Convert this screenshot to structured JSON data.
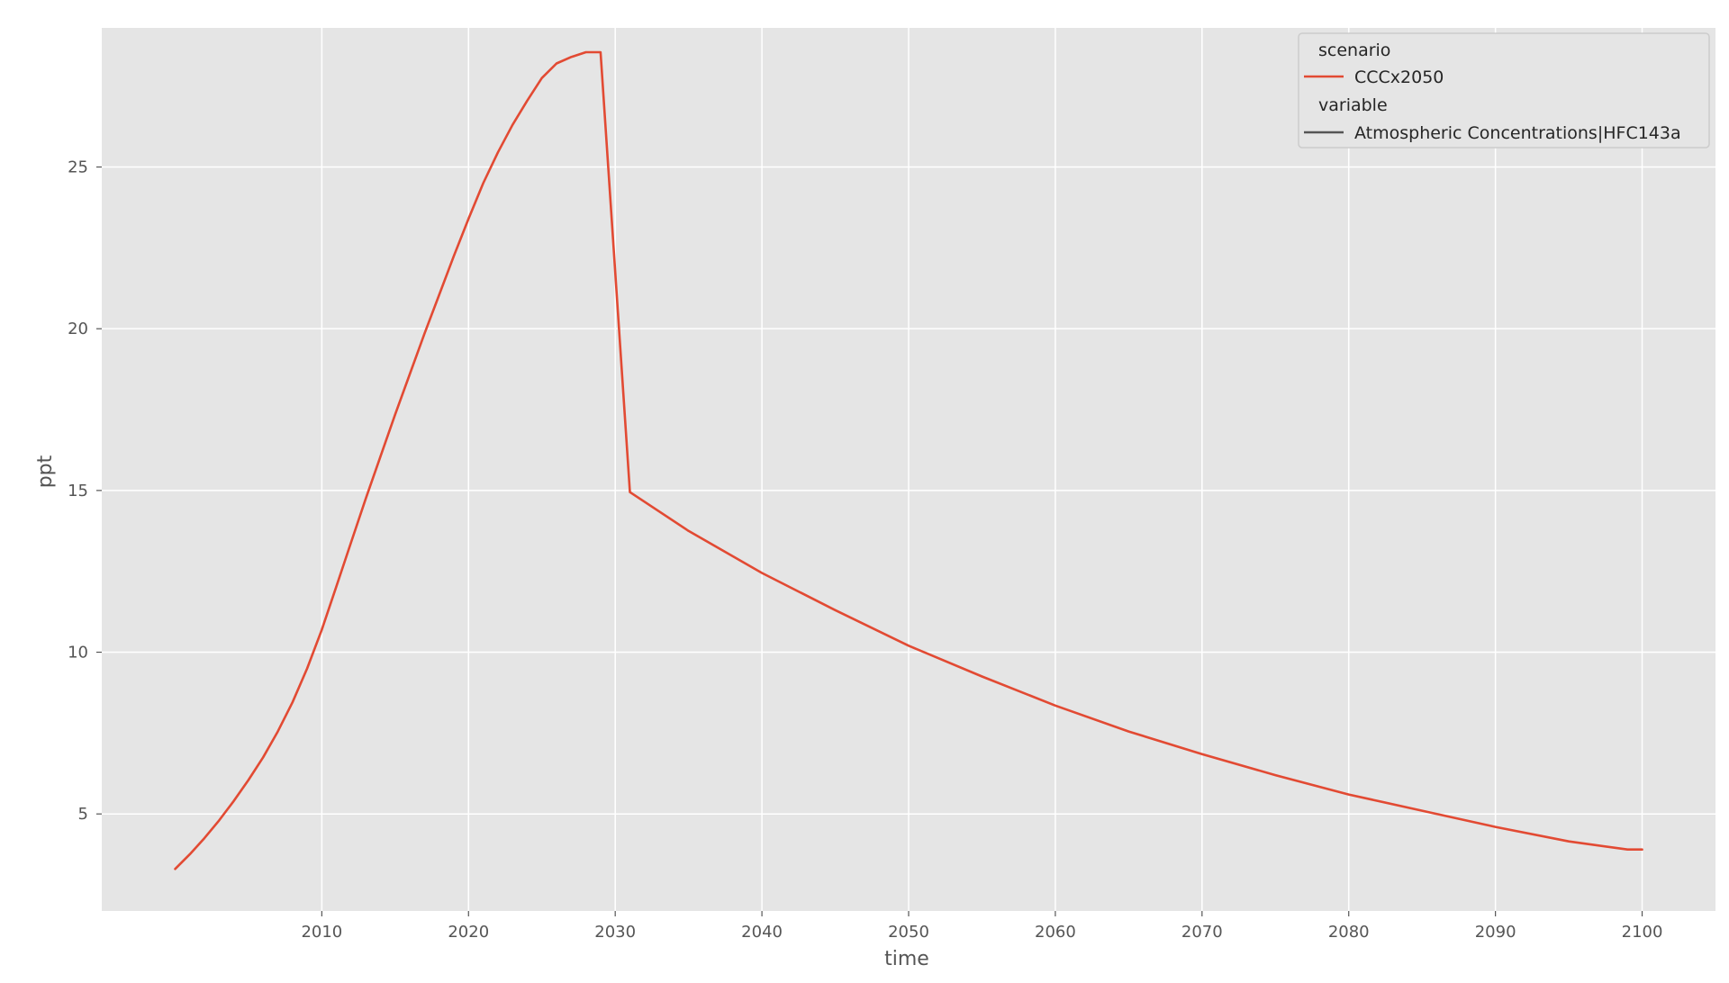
{
  "chart_data": {
    "type": "line",
    "title": "",
    "xlabel": "time",
    "ylabel": "ppt",
    "xlim": [
      1995,
      2105
    ],
    "ylim": [
      2.0,
      29.3
    ],
    "x_ticks": [
      2010,
      2020,
      2030,
      2040,
      2050,
      2060,
      2070,
      2080,
      2090,
      2100
    ],
    "y_ticks": [
      5,
      10,
      15,
      20,
      25
    ],
    "grid": true,
    "legend_position": "top-right",
    "legend": {
      "scenario_title": "scenario",
      "scenario_entry": "CCCx2050",
      "variable_title": "variable",
      "variable_entry": "Atmospheric Concentrations|HFC143a"
    },
    "colors": {
      "series": "#E24A33",
      "plot_background": "#E5E5E5",
      "grid": "#FFFFFF",
      "legend_variable_line": "#555555"
    },
    "series": [
      {
        "name": "CCCx2050",
        "x": [
          2000,
          2001,
          2002,
          2003,
          2004,
          2005,
          2006,
          2007,
          2008,
          2009,
          2010,
          2011,
          2012,
          2013,
          2014,
          2015,
          2016,
          2017,
          2018,
          2019,
          2020,
          2021,
          2022,
          2023,
          2024,
          2025,
          2026,
          2027,
          2028,
          2029,
          2031,
          2035,
          2040,
          2045,
          2050,
          2055,
          2060,
          2065,
          2070,
          2075,
          2080,
          2085,
          2090,
          2095,
          2099,
          2100
        ],
        "values": [
          3.3,
          3.75,
          4.25,
          4.8,
          5.4,
          6.05,
          6.75,
          7.55,
          8.45,
          9.5,
          10.7,
          12.05,
          13.4,
          14.75,
          16.05,
          17.35,
          18.6,
          19.85,
          21.05,
          22.25,
          23.4,
          24.5,
          25.45,
          26.3,
          27.05,
          27.75,
          28.2,
          28.4,
          28.55,
          28.55,
          14.95,
          13.75,
          12.45,
          11.3,
          10.2,
          9.25,
          8.35,
          7.55,
          6.85,
          6.2,
          5.6,
          5.1,
          4.6,
          4.15,
          3.9,
          3.9
        ]
      }
    ]
  }
}
